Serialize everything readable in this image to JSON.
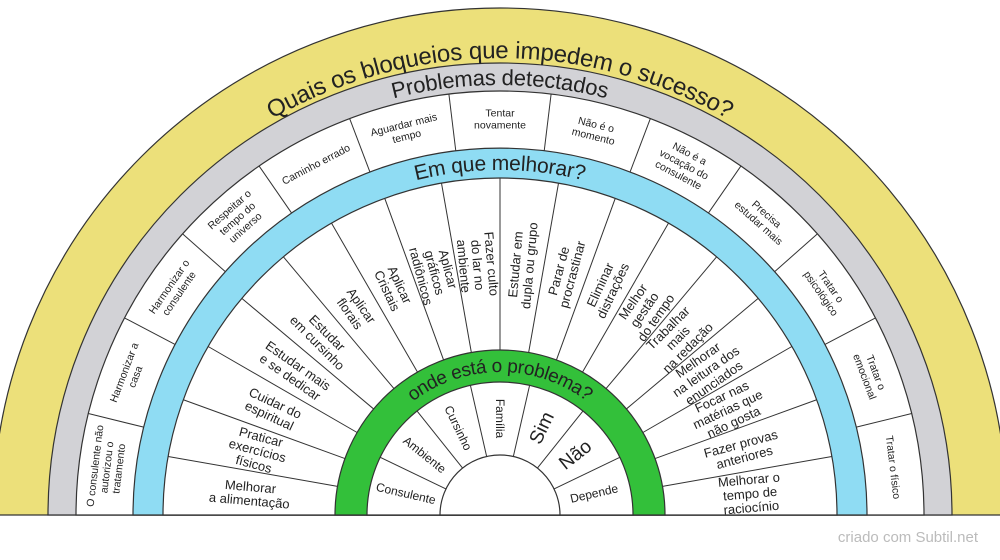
{
  "title": "Quais os bloqueios que impedem o sucesso?",
  "problems": {
    "title": "Problemas detectados",
    "labels": [
      [
        "O consulente não",
        "autorizou o",
        "tratamento"
      ],
      [
        "Harmonizar a",
        "casa"
      ],
      [
        "Harmonizar o",
        "consulente"
      ],
      [
        "Respeitar o",
        "tempo do",
        "universo"
      ],
      [
        "Caminho errado"
      ],
      [
        "Aguardar mais",
        "tempo"
      ],
      [
        "Tentar",
        "novamente"
      ],
      [
        "Não é o",
        "momento"
      ],
      [
        "Não é a",
        "vocação do",
        "consulente"
      ],
      [
        "Precisa",
        "estudar mais"
      ],
      [
        "Tratar o",
        "psicológico"
      ],
      [
        "Tratar o",
        "emocional"
      ],
      [
        "Tratar o físico"
      ]
    ]
  },
  "improvements": {
    "title": "Em que melhorar?",
    "labels": [
      [
        "Melhorar",
        "a alimentação"
      ],
      [
        "Praticar",
        "exercícios",
        "físicos"
      ],
      [
        "Cuidar do",
        "espiritual"
      ],
      [
        "Estudar mais",
        "e se dedicar"
      ],
      [
        "Estudar",
        "em cursinho"
      ],
      [
        "Aplicar",
        "florais"
      ],
      [
        "Aplicar",
        "Cristais"
      ],
      [
        "Aplicar",
        "gráficos",
        "radiônicos"
      ],
      [
        "Fazer culto",
        "do lar no",
        "ambiente"
      ],
      [
        "Estudar em",
        "dupla ou grupo"
      ],
      [
        "Parar de",
        "procrastinar"
      ],
      [
        "Eliminar",
        "distrações"
      ],
      [
        "Melhor",
        "gestão",
        "do tempo"
      ],
      [
        "Trabalhar",
        "mais",
        "na redação"
      ],
      [
        "Melhorar",
        "na leitura dos",
        "enunciados"
      ],
      [
        "Focar nas",
        "matérias que",
        "não gosta"
      ],
      [
        "Fazer provas",
        "anteriores"
      ],
      [
        "Melhorar o",
        "tempo de",
        "raciocínio"
      ]
    ]
  },
  "location": {
    "title": "onde está o problema?",
    "labels": [
      [
        "Consulente"
      ],
      [
        "Ambiente"
      ],
      [
        "Cursinho"
      ],
      [
        "Família"
      ],
      [
        "Sim"
      ],
      [
        "Não"
      ],
      [
        "Depende"
      ]
    ]
  },
  "footer": "criado com Subtil.net"
}
